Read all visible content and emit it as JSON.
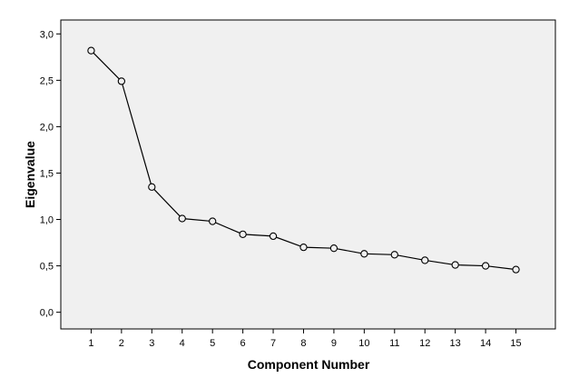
{
  "chart_data": {
    "type": "line",
    "xlabel": "Component Number",
    "ylabel": "Eigenvalue",
    "x": [
      1,
      2,
      3,
      4,
      5,
      6,
      7,
      8,
      9,
      10,
      11,
      12,
      13,
      14,
      15
    ],
    "series": [
      {
        "values": [
          2.82,
          2.49,
          1.35,
          1.01,
          0.98,
          0.84,
          0.82,
          0.7,
          0.69,
          0.63,
          0.62,
          0.56,
          0.51,
          0.5,
          0.46
        ]
      }
    ],
    "y_ticks": [
      "0,0",
      "0,5",
      "1,0",
      "1,5",
      "2,0",
      "2,5",
      "3,0"
    ],
    "ylim": [
      -0.18,
      3.15
    ],
    "xlim": [
      0,
      16.3
    ],
    "grid": false,
    "marker": "open-circle",
    "colors": {
      "plot_background": "#f0f0f0",
      "line": "#000000",
      "marker_fill": "#f0f0f0"
    }
  }
}
